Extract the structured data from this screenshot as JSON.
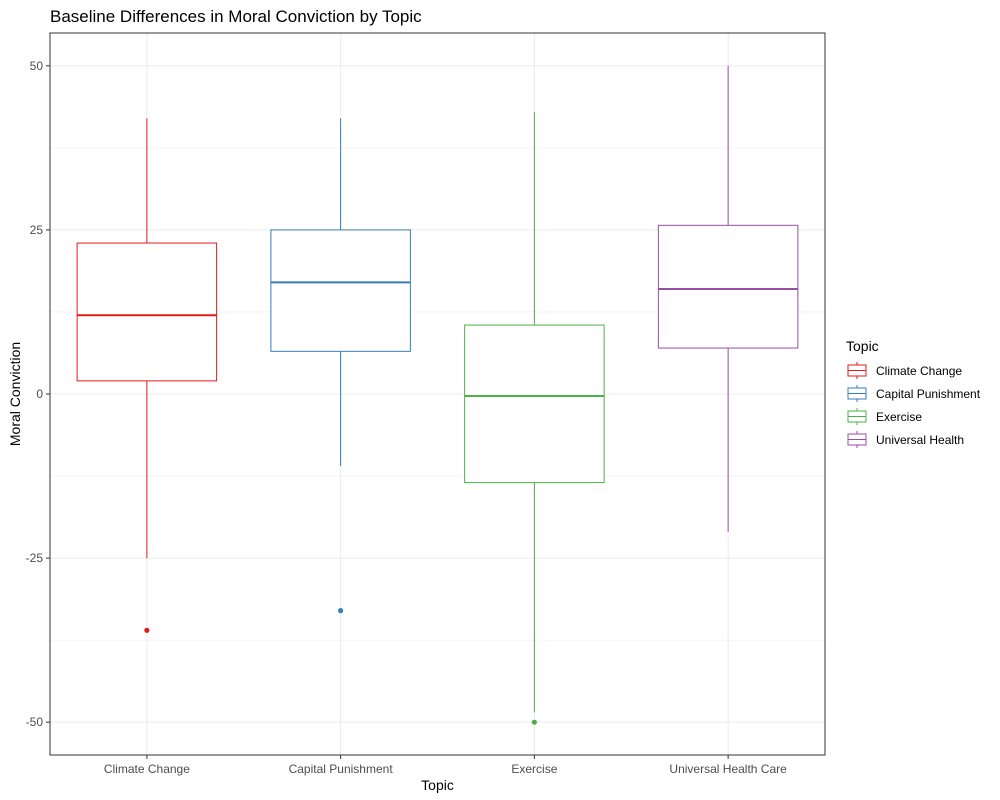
{
  "chart_data": {
    "type": "boxplot",
    "title": "Baseline Differences in Moral Conviction by Topic",
    "xlabel": "Topic",
    "ylabel": "Moral Conviction",
    "ylim": [
      -55,
      55
    ],
    "yticks": [
      -50,
      -25,
      0,
      25,
      50
    ],
    "yticklabels": [
      "-50",
      "-25",
      "0",
      "25",
      "50"
    ],
    "grid": true,
    "legend": {
      "title": "Topic",
      "placement": "right",
      "entries": [
        "Climate Change",
        "Capital Punishment",
        "Exercise",
        "Universal Health"
      ]
    },
    "series": [
      {
        "name": "Climate Change",
        "category": "Climate Change",
        "color": "#E41A1C",
        "min": -25,
        "q1": 2,
        "median": 12,
        "q3": 23,
        "max": 42,
        "outliers": [
          -36
        ]
      },
      {
        "name": "Capital Punishment",
        "category": "Capital Punishment",
        "color": "#377EB8",
        "min": -11,
        "q1": 6.5,
        "median": 17,
        "q3": 25,
        "max": 42,
        "outliers": [
          -33
        ]
      },
      {
        "name": "Exercise",
        "category": "Exercise",
        "color": "#4DAF4A",
        "min": -48.5,
        "q1": -13.5,
        "median": -0.3,
        "q3": 10.5,
        "max": 43,
        "outliers": [
          -50
        ]
      },
      {
        "name": "Universal Health",
        "category": "Universal Health Care",
        "color": "#984EA3",
        "min": -21,
        "q1": 7,
        "median": 16,
        "q3": 25.7,
        "max": 50,
        "outliers": []
      }
    ]
  }
}
